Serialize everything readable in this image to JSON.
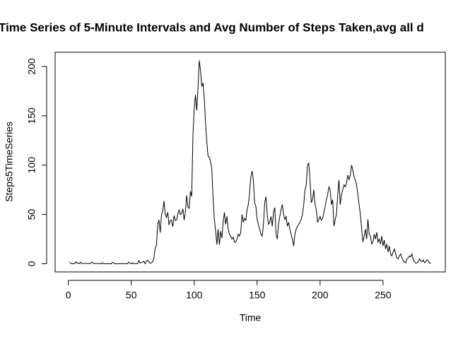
{
  "chart_data": {
    "type": "line",
    "title": "Time Series of 5-Minute Intervals and Avg Number of Steps Taken,avg all d",
    "x_label": "Time",
    "y_label": "Steps5TimeSeries",
    "color": "#000000",
    "x": [
      1,
      2,
      3,
      4,
      5,
      6,
      7,
      8,
      9,
      10,
      11,
      12,
      13,
      14,
      15,
      16,
      17,
      18,
      19,
      20,
      21,
      22,
      23,
      24,
      25,
      26,
      27,
      28,
      29,
      30,
      31,
      32,
      33,
      34,
      35,
      36,
      37,
      38,
      39,
      40,
      41,
      42,
      43,
      44,
      45,
      46,
      47,
      48,
      49,
      50,
      51,
      52,
      53,
      54,
      55,
      56,
      57,
      58,
      59,
      60,
      61,
      62,
      63,
      64,
      65,
      66,
      67,
      68,
      69,
      70,
      71,
      72,
      73,
      74,
      75,
      76,
      77,
      78,
      79,
      80,
      81,
      82,
      83,
      84,
      85,
      86,
      87,
      88,
      89,
      90,
      91,
      92,
      93,
      94,
      95,
      96,
      97,
      98,
      99,
      100,
      101,
      102,
      103,
      104,
      105,
      106,
      107,
      108,
      109,
      110,
      111,
      112,
      113,
      114,
      115,
      116,
      117,
      118,
      119,
      120,
      121,
      122,
      123,
      124,
      125,
      126,
      127,
      128,
      129,
      130,
      131,
      132,
      133,
      134,
      135,
      136,
      137,
      138,
      139,
      140,
      141,
      142,
      143,
      144,
      145,
      146,
      147,
      148,
      149,
      150,
      151,
      152,
      153,
      154,
      155,
      156,
      157,
      158,
      159,
      160,
      161,
      162,
      163,
      164,
      165,
      166,
      167,
      168,
      169,
      170,
      171,
      172,
      173,
      174,
      175,
      176,
      177,
      178,
      179,
      180,
      181,
      182,
      183,
      184,
      185,
      186,
      187,
      188,
      189,
      190,
      191,
      192,
      193,
      194,
      195,
      196,
      197,
      198,
      199,
      200,
      201,
      202,
      203,
      204,
      205,
      206,
      207,
      208,
      209,
      210,
      211,
      212,
      213,
      214,
      215,
      216,
      217,
      218,
      219,
      220,
      221,
      222,
      223,
      224,
      225,
      226,
      227,
      228,
      229,
      230,
      231,
      232,
      233,
      234,
      235,
      236,
      237,
      238,
      239,
      240,
      241,
      242,
      243,
      244,
      245,
      246,
      247,
      248,
      249,
      250,
      251,
      252,
      253,
      254,
      255,
      256,
      257,
      258,
      259,
      260,
      261,
      262,
      263,
      264,
      265,
      266,
      267,
      268,
      269,
      270,
      271,
      272,
      273,
      274,
      275,
      276,
      277,
      278,
      279,
      280,
      281,
      282,
      283,
      284,
      285,
      286,
      287,
      288
    ],
    "values": [
      1.7,
      0.3,
      0.1,
      0.2,
      0.1,
      2.1,
      0.5,
      0.9,
      0,
      1.5,
      0.3,
      0.1,
      0.3,
      0.7,
      0.2,
      0.3,
      0,
      1.1,
      1.8,
      0.2,
      0.2,
      0.4,
      0.3,
      0,
      0,
      0,
      1.1,
      0,
      0,
      0.1,
      0,
      0.2,
      0,
      0,
      1.5,
      0.9,
      0,
      0,
      0,
      0,
      0,
      0.2,
      0.4,
      0,
      0,
      0,
      0,
      1.7,
      0.6,
      0,
      1.1,
      0,
      0.3,
      0.2,
      0.2,
      3.3,
      0.7,
      1.2,
      1.8,
      2.5,
      0,
      2.6,
      3.6,
      2.0,
      0.5,
      1.0,
      2.1,
      6.1,
      16.0,
      18.3,
      39.5,
      44.5,
      31.5,
      49.3,
      53.8,
      63.5,
      50.0,
      47.1,
      52.2,
      39.3,
      44.0,
      44.2,
      37.4,
      49.0,
      43.8,
      44.4,
      50.5,
      54.5,
      49.9,
      51.0,
      55.7,
      44.3,
      52.3,
      69.5,
      57.8,
      56.2,
      73.4,
      68.2,
      129.4,
      157.5,
      171.2,
      155.4,
      177.3,
      206.2,
      195.9,
      179.6,
      183.4,
      167.0,
      143.5,
      124.0,
      109.1,
      108.1,
      103.7,
      95.9,
      66.2,
      45.2,
      33.5,
      19.6,
      35,
      19.3,
      33,
      26,
      42,
      52,
      40,
      48,
      35,
      30,
      28,
      25,
      27,
      22,
      22,
      25,
      30,
      28,
      32,
      50,
      42,
      46,
      44,
      55,
      60,
      72,
      88,
      94,
      85,
      62,
      58,
      45,
      40,
      35,
      30,
      28,
      40,
      62,
      68,
      50,
      40,
      42,
      48,
      38,
      52,
      57,
      30,
      25,
      40,
      48,
      55,
      60,
      50,
      45,
      48,
      38,
      42,
      35,
      30,
      25,
      18,
      30,
      35,
      38,
      40,
      42,
      45,
      50,
      60,
      75,
      80,
      100,
      102,
      85,
      62,
      65,
      75,
      60,
      55,
      42,
      45,
      48,
      44,
      46,
      52,
      58,
      65,
      70,
      78,
      75,
      60,
      65,
      38,
      45,
      50,
      70,
      85,
      60,
      70,
      75,
      80,
      78,
      82,
      90,
      85,
      90,
      100,
      95,
      88,
      85,
      80,
      70,
      60,
      50,
      35,
      22,
      28,
      35,
      25,
      45,
      30,
      28,
      20,
      22,
      30,
      25,
      32,
      22,
      25,
      20,
      28,
      18,
      24,
      15,
      20,
      12,
      18,
      10,
      8,
      12,
      15,
      10,
      6,
      5,
      8,
      10,
      6,
      3,
      2,
      1,
      5,
      6,
      8,
      7,
      10,
      4,
      2,
      0.5,
      1,
      2,
      5,
      3,
      2,
      4,
      1,
      2,
      4,
      3,
      0.5,
      1
    ],
    "xlim": [
      -10.48,
      299.48
    ],
    "xticks": [
      0,
      50,
      100,
      150,
      200,
      250
    ],
    "ylim": [
      -8.25,
      214.4
    ],
    "yticks": [
      0,
      50,
      100,
      150,
      200
    ]
  }
}
